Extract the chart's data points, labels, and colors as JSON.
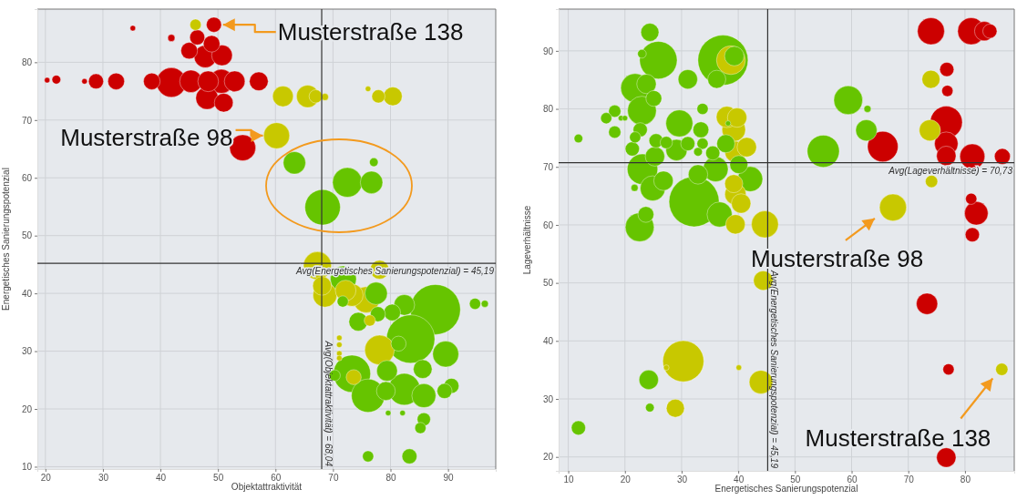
{
  "chart_data": [
    {
      "type": "bubble",
      "xlabel": "Objektattraktivität",
      "ylabel": "Energetisches Sanierungspotenzial",
      "xlim": [
        18.6,
        98.3
      ],
      "ylim": [
        9.6,
        89.2
      ],
      "xticks": [
        20,
        30,
        40,
        50,
        60,
        70,
        80,
        90
      ],
      "yticks": [
        10,
        20,
        30,
        40,
        50,
        60,
        70,
        80
      ],
      "grid": true,
      "ref_lines": [
        {
          "axis": "x",
          "value": 68.04,
          "label": "Avg(Objektattraktivität) = 68,04",
          "color": "#333333"
        },
        {
          "axis": "y",
          "value": 45.19,
          "label": "Avg(Energetisches Sanierungspotenzial) = 45,19",
          "color": "#333333"
        }
      ],
      "annotations": [
        {
          "text": "Musterstraße 138",
          "x": 49.3,
          "y": 86.5
        },
        {
          "text": "Musterstraße 98",
          "x": 60.2,
          "y": 67.3
        }
      ],
      "series": [
        {
          "color": "#cc0000",
          "x": [
            35.2,
            41.9,
            49.3,
            46.4,
            48.9,
            45,
            50.7,
            47.8,
            20.3,
            21.9,
            26.8,
            28.8,
            32.3,
            38.5,
            41.9,
            45.3,
            48.3,
            50.6,
            52.9,
            57.1,
            48.1,
            51,
            54.3
          ],
          "values": [
            85.9,
            84.2,
            86.5,
            84.3,
            83.2,
            82,
            81.2,
            81,
            76.9,
            77,
            76.7,
            76.7,
            76.7,
            76.7,
            76.5,
            76.7,
            76.7,
            76.7,
            76.7,
            76.7,
            73.8,
            73,
            65.2
          ],
          "sizes": [
            0.012,
            0.02,
            0.09,
            0.09,
            0.11,
            0.11,
            0.17,
            0.2,
            0.012,
            0.03,
            0.012,
            0.09,
            0.11,
            0.11,
            0.35,
            0.2,
            0.17,
            0.23,
            0.17,
            0.14,
            0.2,
            0.14,
            0.27
          ]
        },
        {
          "color": "#c8c800",
          "x": [
            46.1,
            61.3,
            65.6,
            67,
            68.6,
            76.1,
            77.9,
            80.4,
            60.2,
            67.3,
            78.1,
            68.1,
            68.6,
            72.2,
            73.3,
            75.8,
            76.4,
            78.1,
            73.6,
            71.1,
            71.1,
            71.1,
            71.1
          ],
          "values": [
            86.5,
            74.1,
            74.1,
            74.1,
            74,
            75.4,
            74.1,
            74.1,
            67.3,
            44.8,
            44.1,
            41.3,
            39.7,
            40.5,
            39.7,
            38.9,
            35.3,
            30.2,
            25.5,
            32.3,
            31.1,
            29.6,
            28.8
          ],
          "sizes": [
            0.05,
            0.17,
            0.2,
            0.07,
            0.02,
            0.012,
            0.07,
            0.14,
            0.27,
            0.31,
            0.14,
            0.14,
            0.23,
            0.17,
            0.2,
            0.27,
            0.05,
            0.35,
            0.09,
            0.012,
            0.012,
            0.012,
            0.012
          ]
        },
        {
          "color": "#66c400",
          "x": [
            63.3,
            72.5,
            76.7,
            77.1,
            68.2,
            71.8,
            77.5,
            71.7,
            74.4,
            77.8,
            80.3,
            82.4,
            87.8,
            94.7,
            96.4,
            83.5,
            81.4,
            89.6,
            85.6,
            73.3,
            70.3,
            79.4,
            76.1,
            79.2,
            82.4,
            85.8,
            90.6,
            89.4,
            85.8,
            85.2,
            76.1,
            83.3,
            79.6,
            82.1
          ],
          "values": [
            62.6,
            59.2,
            59.2,
            62.7,
            54.9,
            42.5,
            40,
            38.6,
            35.1,
            36.4,
            36.7,
            38,
            37.2,
            38.2,
            38.2,
            32.1,
            31.3,
            29.5,
            26.9,
            26.1,
            25.8,
            26.6,
            22.3,
            23.1,
            23.4,
            22.3,
            24,
            23.1,
            18.2,
            16.7,
            11.8,
            11.8,
            19.3,
            19.3
          ],
          "sizes": [
            0.2,
            0.35,
            0.2,
            0.03,
            0.5,
            0.27,
            0.2,
            0.05,
            0.14,
            0.09,
            0.11,
            0.17,
            1,
            0.05,
            0.02,
            0.93,
            0.09,
            0.27,
            0.14,
            0.55,
            0.05,
            0.17,
            0.44,
            0.14,
            0.4,
            0.23,
            0.09,
            0.09,
            0.07,
            0.05,
            0.05,
            0.09,
            0.012,
            0.012
          ]
        }
      ]
    },
    {
      "type": "bubble",
      "xlabel": "Energetisches Sanierungspotenzial",
      "ylabel": "Lageverhältnisse",
      "xlim": [
        8.3,
        88.7
      ],
      "ylim": [
        17.6,
        97.2
      ],
      "xticks": [
        10,
        20,
        30,
        40,
        50,
        60,
        70,
        80
      ],
      "yticks": [
        20,
        30,
        40,
        50,
        60,
        70,
        80,
        90
      ],
      "grid": true,
      "ref_lines": [
        {
          "axis": "x",
          "value": 45.19,
          "label": "Avg(Energetisches Sanierungspotenzial) = 45,19",
          "color": "#333333"
        },
        {
          "axis": "y",
          "value": 70.73,
          "label": "Avg(Lageverhältnisse) = 70,73",
          "color": "#333333"
        }
      ],
      "annotations": [
        {
          "text": "Musterstraße 98",
          "x": 67.3,
          "y": 63
        },
        {
          "text": "Musterstraße 138",
          "x": 86.5,
          "y": 35.1
        }
      ],
      "series": [
        {
          "color": "#66c400",
          "x": [
            11.8,
            24.4,
            25.9,
            23,
            21.8,
            23.8,
            25.1,
            23,
            18.2,
            16.7,
            19.3,
            20,
            18.2,
            22.7,
            21.8,
            21.3,
            25.5,
            27.3,
            25.3,
            29.1,
            29.6,
            31.1,
            33.7,
            33.4,
            31.1,
            32.9,
            33.7,
            35.5,
            37.3,
            39.3,
            36.2,
            37.8,
            38.2,
            23.1,
            26.8,
            24.9,
            21.7,
            32.2,
            32.9,
            36,
            40.1,
            42.1,
            36.7,
            23.7,
            22.6,
            59.4,
            62.8,
            62.6,
            55,
            24.2,
            24.4,
            11.8
          ],
          "values": [
            74.9,
            93.2,
            88.4,
            89.5,
            83.6,
            84.3,
            81.8,
            79.7,
            79.6,
            78.4,
            78.4,
            78.4,
            76,
            76.4,
            75.1,
            73.1,
            74.5,
            74.2,
            71.8,
            72.9,
            77.5,
            85.1,
            80,
            76.4,
            74,
            72.6,
            74,
            72.4,
            88.4,
            89.1,
            85.1,
            74,
            77.5,
            69.6,
            67.6,
            66.3,
            66.4,
            64,
            68.7,
            69.6,
            70.4,
            67.9,
            61.8,
            61.8,
            59.6,
            81.5,
            80,
            76.3,
            72.7,
            33.3,
            28.5,
            25
          ],
          "sizes": [
            0.03,
            0.13,
            0.56,
            0.03,
            0.33,
            0.15,
            0.1,
            0.33,
            0.06,
            0.05,
            0.012,
            0.012,
            0.06,
            0.08,
            0.05,
            0.08,
            0.08,
            0.06,
            0.15,
            0.18,
            0.29,
            0.15,
            0.05,
            0.1,
            0.08,
            0.03,
            0.05,
            0.08,
            1,
            0.15,
            0.13,
            0.13,
            0.011,
            0.37,
            0.15,
            0.25,
            0.02,
            1,
            0.15,
            0.25,
            0.13,
            0.25,
            0.25,
            0.1,
            0.33,
            0.33,
            0.02,
            0.18,
            0.41,
            0.15,
            0.03,
            0.08
          ]
        },
        {
          "color": "#c8c800",
          "x": [
            38.7,
            38,
            39.8,
            39.2,
            41.5,
            39.5,
            39.2,
            39.5,
            40.5,
            39.5,
            44.7,
            67.3,
            74,
            73.8,
            74.1,
            44.4,
            30.3,
            27.3,
            40.1,
            44,
            28.9,
            86.5
          ],
          "values": [
            88.4,
            78.6,
            78.5,
            76.4,
            73.4,
            72.6,
            67.1,
            65.3,
            63.7,
            60.1,
            60.1,
            63,
            85.1,
            76.3,
            67.5,
            50.4,
            36.5,
            35.4,
            35.4,
            32.9,
            28.4,
            35.1
          ],
          "sizes": [
            0.33,
            0.18,
            0.15,
            0.22,
            0.15,
            0.18,
            0.13,
            0.18,
            0.15,
            0.15,
            0.29,
            0.29,
            0.13,
            0.18,
            0.06,
            0.15,
            0.67,
            0.012,
            0.012,
            0.22,
            0.13,
            0.06
          ]
        },
        {
          "color": "#cc0000",
          "x": [
            74,
            81.1,
            83.4,
            84.4,
            76.8,
            76.9,
            76.7,
            76.7,
            76.7,
            65.5,
            81.3,
            86.6,
            81.1,
            82,
            81.3,
            73.3,
            77.1,
            76.7
          ],
          "values": [
            93.4,
            93.4,
            93.4,
            93.4,
            86.8,
            83.1,
            77.7,
            74,
            71.9,
            73.5,
            71.8,
            71.8,
            64.5,
            62,
            58.3,
            46.4,
            35.1,
            19.9
          ],
          "sizes": [
            0.29,
            0.29,
            0.15,
            0.08,
            0.08,
            0.05,
            0.41,
            0.22,
            0.15,
            0.37,
            0.25,
            0.1,
            0.05,
            0.22,
            0.08,
            0.18,
            0.05,
            0.15
          ]
        }
      ]
    }
  ]
}
